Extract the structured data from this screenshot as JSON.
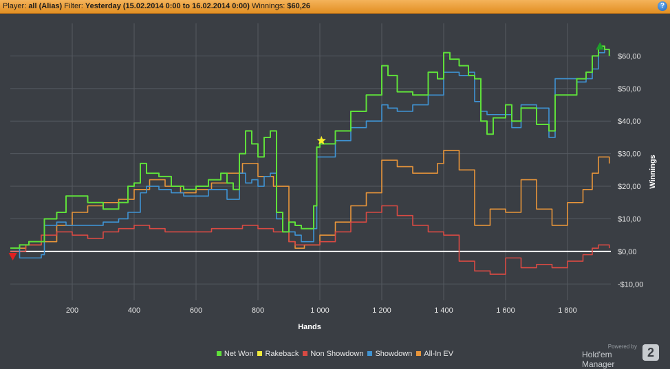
{
  "header": {
    "player_label": "Player:",
    "player_value": "all (Alias)",
    "filter_label": "Filter:",
    "filter_value": "Yesterday (15.02.2014 0:00 to 16.02.2014 0:00)",
    "winnings_label": "Winnings:",
    "winnings_value": "$60,26",
    "help_glyph": "?"
  },
  "branding": {
    "powered": "Powered by",
    "name": "Hold'em Manager",
    "logo": "2"
  },
  "colors": {
    "background": "#3a3e44",
    "grid": "#555a61",
    "zero_line": "#ffffff",
    "Net Won": "#5fe03a",
    "Rakeback": "#f0ea3c",
    "Non Showdown": "#d84a43",
    "Showdown": "#3f94d4",
    "All-In EV": "#e8953a"
  },
  "chart_data": {
    "type": "line",
    "xlabel": "Hands",
    "ylabel": "Winnings",
    "xlim": [
      0,
      1940
    ],
    "ylim": [
      -15,
      70
    ],
    "x_ticks": [
      200,
      400,
      600,
      800,
      1000,
      1200,
      1400,
      1600,
      1800
    ],
    "x_tick_labels": [
      "200",
      "400",
      "600",
      "800",
      "1 000",
      "1 200",
      "1 400",
      "1 600",
      "1 800"
    ],
    "y_ticks": [
      -10,
      0,
      10,
      20,
      30,
      40,
      50,
      60
    ],
    "y_tick_labels": [
      "-$10,00",
      "$0,00",
      "$10,00",
      "$20,00",
      "$30,00",
      "$40,00",
      "$50,00",
      "$60,00"
    ],
    "grid": true,
    "legend_position": "bottom",
    "markers": [
      {
        "kind": "min",
        "x": 8,
        "y": -1.5,
        "color": "#e02020"
      },
      {
        "kind": "max",
        "x": 1905,
        "y": 63,
        "color": "#1e9e2a"
      },
      {
        "kind": "star",
        "x": 1005,
        "y": 34,
        "color": "#f7ef2a"
      }
    ],
    "series": [
      {
        "name": "Net Won",
        "x": [
          0,
          30,
          60,
          100,
          110,
          150,
          180,
          250,
          300,
          350,
          380,
          400,
          420,
          440,
          480,
          520,
          560,
          600,
          640,
          680,
          700,
          720,
          740,
          760,
          780,
          800,
          820,
          840,
          860,
          880,
          900,
          920,
          940,
          960,
          980,
          990,
          1000,
          1050,
          1100,
          1150,
          1200,
          1220,
          1250,
          1300,
          1350,
          1380,
          1400,
          1420,
          1450,
          1480,
          1500,
          1520,
          1540,
          1560,
          1600,
          1620,
          1650,
          1700,
          1740,
          1760,
          1800,
          1830,
          1860,
          1880,
          1900,
          1920,
          1935
        ],
        "y": [
          1,
          2,
          3,
          3,
          10,
          12,
          17,
          15,
          13,
          15,
          20,
          21,
          27,
          24,
          23,
          20,
          19,
          20,
          22,
          24,
          21,
          19,
          30,
          37,
          33,
          29,
          35,
          37,
          12,
          6,
          9,
          8,
          7,
          7,
          14,
          32,
          33,
          37,
          43,
          48,
          57,
          54,
          49,
          48,
          55,
          53,
          61,
          59,
          57,
          54,
          53,
          40,
          36,
          41,
          45,
          40,
          44,
          39,
          37,
          48,
          48,
          53,
          55,
          60,
          63,
          62,
          60
        ]
      },
      {
        "name": "Showdown",
        "x": [
          0,
          30,
          60,
          100,
          110,
          150,
          180,
          250,
          300,
          350,
          380,
          400,
          420,
          440,
          480,
          520,
          560,
          600,
          640,
          680,
          700,
          720,
          740,
          760,
          780,
          800,
          820,
          840,
          860,
          880,
          900,
          920,
          940,
          960,
          980,
          990,
          1000,
          1050,
          1100,
          1150,
          1200,
          1220,
          1250,
          1300,
          1350,
          1380,
          1400,
          1420,
          1450,
          1480,
          1500,
          1520,
          1540,
          1560,
          1600,
          1620,
          1650,
          1700,
          1740,
          1760,
          1800,
          1830,
          1860,
          1880,
          1900,
          1920,
          1935
        ],
        "y": [
          1,
          -2,
          -2,
          -1,
          8,
          9,
          8,
          8,
          9,
          10,
          12,
          12,
          18,
          20,
          19,
          18,
          17,
          17,
          19,
          19,
          16,
          16,
          24,
          21,
          22,
          20,
          23,
          24,
          10,
          6,
          6,
          5,
          3,
          3,
          7,
          29,
          29,
          34,
          38,
          40,
          45,
          44,
          43,
          45,
          48,
          48,
          55,
          55,
          54,
          55,
          46,
          43,
          42,
          42,
          42,
          38,
          45,
          44,
          35,
          53,
          53,
          52,
          53,
          56,
          61,
          62,
          61
        ]
      },
      {
        "name": "Non Showdown",
        "x": [
          0,
          50,
          100,
          150,
          200,
          250,
          300,
          350,
          400,
          450,
          500,
          550,
          600,
          650,
          700,
          750,
          800,
          850,
          900,
          920,
          950,
          1000,
          1050,
          1100,
          1150,
          1200,
          1250,
          1300,
          1350,
          1400,
          1450,
          1500,
          1550,
          1600,
          1650,
          1700,
          1750,
          1800,
          1850,
          1880,
          1900,
          1935
        ],
        "y": [
          0,
          2,
          5,
          6,
          5,
          4,
          6,
          7,
          8,
          7,
          6,
          6,
          6,
          7,
          7,
          8,
          7,
          6,
          3,
          2,
          2,
          3,
          6,
          9,
          12,
          14,
          11,
          8,
          6,
          5,
          -3,
          -6,
          -7,
          -2,
          -5,
          -4,
          -5,
          -3,
          -1,
          1,
          2,
          1
        ]
      },
      {
        "name": "All-In EV",
        "x": [
          0,
          50,
          100,
          150,
          200,
          250,
          300,
          350,
          400,
          450,
          500,
          550,
          600,
          650,
          700,
          750,
          800,
          850,
          900,
          920,
          950,
          1000,
          1050,
          1100,
          1150,
          1200,
          1250,
          1300,
          1350,
          1380,
          1400,
          1450,
          1500,
          1550,
          1600,
          1650,
          1700,
          1750,
          1800,
          1850,
          1880,
          1900,
          1935
        ],
        "y": [
          1,
          2,
          3,
          8,
          12,
          14,
          15,
          16,
          19,
          22,
          20,
          18,
          19,
          21,
          24,
          27,
          23,
          20,
          3,
          1,
          2,
          5,
          9,
          14,
          18,
          28,
          26,
          24,
          24,
          27,
          31,
          25,
          8,
          13,
          12,
          22,
          13,
          8,
          15,
          19,
          24,
          29,
          27
        ]
      },
      {
        "name": "Rakeback",
        "x": [],
        "y": []
      }
    ]
  }
}
